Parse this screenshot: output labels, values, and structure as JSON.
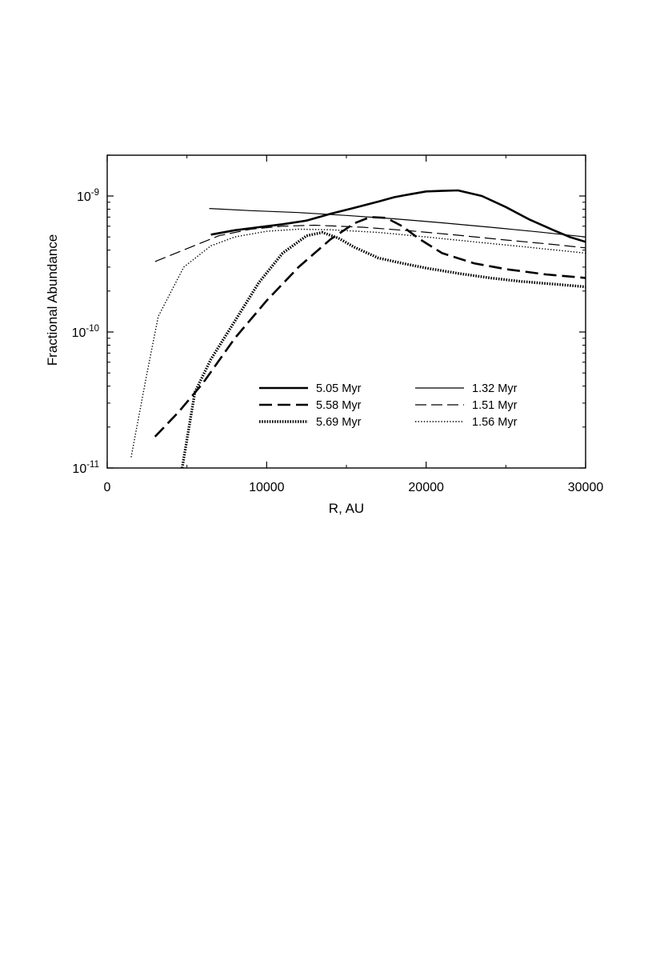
{
  "chart_data": {
    "type": "line",
    "title": "",
    "xlabel": "R, AU",
    "ylabel": "Fractional Abundance",
    "xlim": [
      0,
      30000
    ],
    "ylim": [
      1e-11,
      2e-09
    ],
    "yscale": "log",
    "x_ticks": [
      0,
      10000,
      20000,
      30000
    ],
    "x_tick_labels": [
      "0",
      "10000",
      "20000",
      "30000"
    ],
    "y_ticks": [
      {
        "value": 1e-11,
        "base": "10",
        "exp": "-11"
      },
      {
        "value": 1e-10,
        "base": "10",
        "exp": "-10"
      },
      {
        "value": 1e-09,
        "base": "10",
        "exp": "-9"
      }
    ],
    "grid": false,
    "legend_position": "bottom-center",
    "series": [
      {
        "name": "5.05 Myr",
        "style": "thick-solid",
        "x": [
          6500,
          8000,
          9500,
          11000,
          12500,
          14000,
          15500,
          17000,
          18000,
          19000,
          20000,
          21000,
          22000,
          23500,
          25000,
          26500,
          28000,
          29000,
          30000
        ],
        "y": [
          5.2e-10,
          5.6e-10,
          5.9e-10,
          6.2e-10,
          6.6e-10,
          7.4e-10,
          8.2e-10,
          9.1e-10,
          9.8e-10,
          1.03e-09,
          1.08e-09,
          1.09e-09,
          1.1e-09,
          1e-09,
          8.3e-10,
          6.7e-10,
          5.6e-10,
          5e-10,
          4.6e-10
        ]
      },
      {
        "name": "5.58 Myr",
        "style": "thick-dashed",
        "x": [
          3000,
          4500,
          6000,
          8000,
          10000,
          12000,
          14000,
          15500,
          16500,
          17500,
          18500,
          19500,
          21000,
          23000,
          25000,
          27500,
          30000
        ],
        "y": [
          1.7e-11,
          2.6e-11,
          4.2e-11,
          9e-11,
          1.7e-10,
          3e-10,
          4.8e-10,
          6.3e-10,
          7e-10,
          6.9e-10,
          6e-10,
          4.9e-10,
          3.8e-10,
          3.2e-10,
          2.9e-10,
          2.65e-10,
          2.5e-10
        ]
      },
      {
        "name": "5.69 Myr",
        "style": "thick-dotted",
        "x": [
          4700,
          5500,
          6500,
          8000,
          9500,
          11000,
          12500,
          13500,
          14500,
          15500,
          17000,
          18500,
          20000,
          22000,
          24000,
          26000,
          28000,
          30000
        ],
        "y": [
          1e-11,
          3.6e-11,
          6.3e-11,
          1.2e-10,
          2.3e-10,
          3.8e-10,
          5.1e-10,
          5.4e-10,
          4.9e-10,
          4.2e-10,
          3.5e-10,
          3.2e-10,
          2.95e-10,
          2.7e-10,
          2.5e-10,
          2.35e-10,
          2.25e-10,
          2.15e-10
        ]
      },
      {
        "name": "1.32 Myr",
        "style": "thin-solid",
        "x": [
          6400,
          9000,
          12000,
          15000,
          18000,
          21000,
          24000,
          27000,
          30000
        ],
        "y": [
          8.1e-10,
          7.8e-10,
          7.55e-10,
          7.2e-10,
          6.8e-10,
          6.35e-10,
          5.9e-10,
          5.45e-10,
          5e-10
        ]
      },
      {
        "name": "1.51 Myr",
        "style": "thin-dashed",
        "x": [
          3000,
          5000,
          7000,
          9000,
          11000,
          13000,
          16000,
          19000,
          22000,
          25000,
          28000,
          30000
        ],
        "y": [
          3.3e-10,
          4.1e-10,
          5.1e-10,
          5.7e-10,
          6e-10,
          6.1e-10,
          5.9e-10,
          5.55e-10,
          5.15e-10,
          4.75e-10,
          4.4e-10,
          4.15e-10
        ]
      },
      {
        "name": "1.56 Myr",
        "style": "thin-dotted",
        "x": [
          1500,
          2500,
          3200,
          4800,
          6500,
          8000,
          10000,
          12000,
          14000,
          17000,
          20000,
          23000,
          26000,
          30000
        ],
        "y": [
          1.2e-11,
          5e-11,
          1.3e-10,
          3e-10,
          4.3e-10,
          5e-10,
          5.5e-10,
          5.7e-10,
          5.65e-10,
          5.4e-10,
          5e-10,
          4.6e-10,
          4.25e-10,
          3.8e-10
        ]
      }
    ]
  }
}
